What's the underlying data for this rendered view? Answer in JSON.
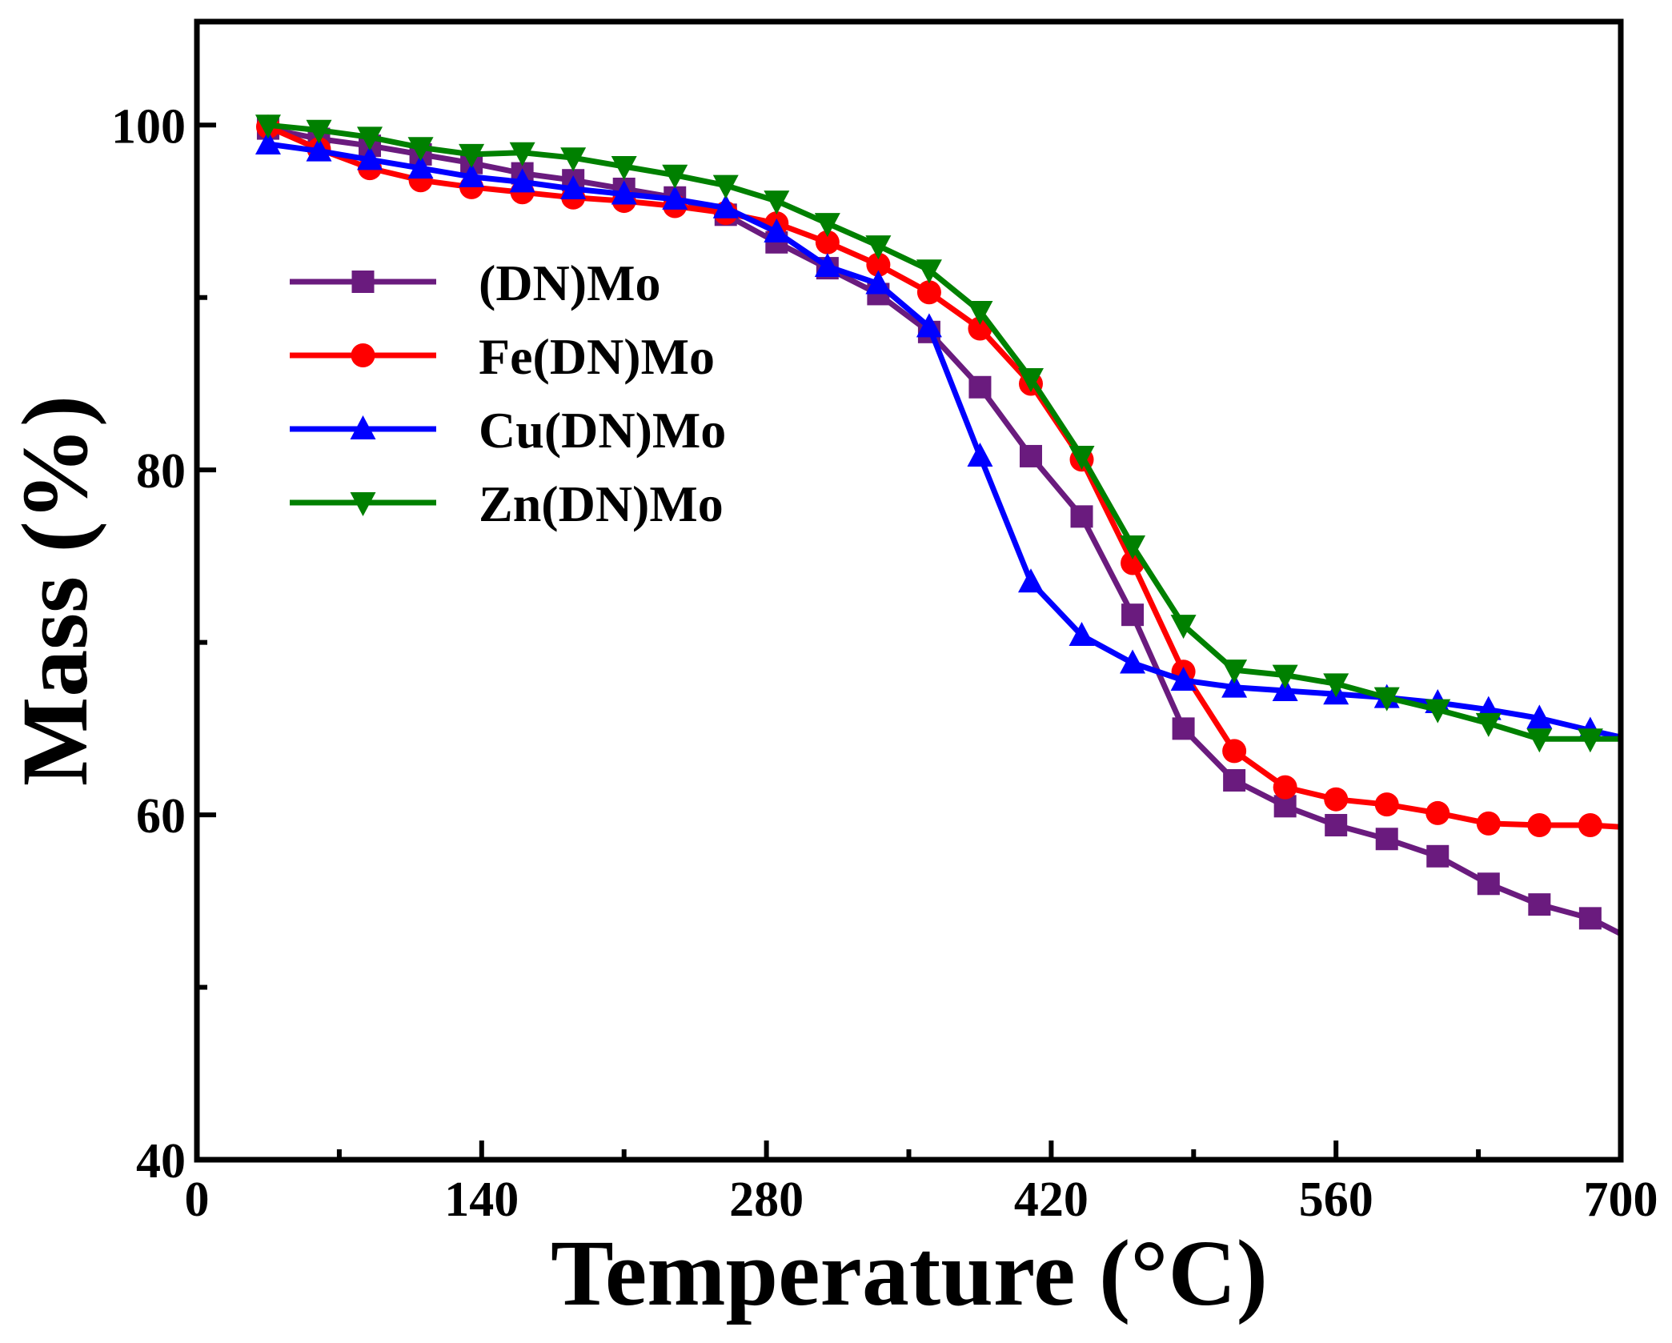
{
  "chart_data": {
    "type": "line",
    "title": "",
    "xlabel": "Temperature (°C)",
    "ylabel": "Mass (%)",
    "xlim": [
      0,
      700
    ],
    "ylim": [
      40,
      106
    ],
    "xticks": [
      0,
      140,
      280,
      420,
      560,
      700
    ],
    "yticks": [
      40,
      60,
      80,
      100
    ],
    "legend_position": "upper-left",
    "series": [
      {
        "name": "(DN)Mo",
        "color": "#6a1b7e",
        "marker": "square",
        "x": [
          35,
          60,
          85,
          110,
          135,
          160,
          185,
          210,
          235,
          260,
          285,
          310,
          335,
          360,
          385,
          410,
          435,
          460,
          485,
          510,
          535,
          560,
          585,
          610,
          635,
          660,
          685,
          700
        ],
        "y": [
          99.8,
          99.2,
          98.8,
          98.3,
          97.8,
          97.2,
          96.8,
          96.3,
          95.8,
          94.8,
          93.2,
          91.7,
          90.2,
          88,
          84.8,
          80.8,
          77.3,
          71.6,
          65,
          62,
          60.5,
          59.4,
          58.6,
          57.6,
          56,
          54.8,
          54,
          53.1
        ]
      },
      {
        "name": "Fe(DN)Mo",
        "color": "#ff0000",
        "marker": "circle",
        "x": [
          35,
          60,
          85,
          110,
          135,
          160,
          185,
          210,
          235,
          260,
          285,
          310,
          335,
          360,
          385,
          410,
          435,
          460,
          485,
          510,
          535,
          560,
          585,
          610,
          635,
          660,
          685,
          700
        ],
        "y": [
          99.9,
          98.6,
          97.5,
          96.8,
          96.4,
          96.1,
          95.8,
          95.6,
          95.3,
          94.9,
          94.3,
          93.2,
          91.9,
          90.3,
          88.2,
          85,
          80.6,
          74.6,
          68.3,
          63.7,
          61.6,
          60.9,
          60.6,
          60.1,
          59.5,
          59.4,
          59.4,
          59.3
        ]
      },
      {
        "name": "Cu(DN)Mo",
        "color": "#0000ff",
        "marker": "triangle-up",
        "x": [
          35,
          60,
          85,
          110,
          135,
          160,
          185,
          210,
          235,
          260,
          285,
          310,
          335,
          360,
          385,
          410,
          435,
          460,
          485,
          510,
          535,
          560,
          585,
          610,
          635,
          660,
          685,
          700
        ],
        "y": [
          98.9,
          98.5,
          98,
          97.5,
          97,
          96.7,
          96.3,
          96,
          95.7,
          95.2,
          93.8,
          91.8,
          90.8,
          88.3,
          80.8,
          73.5,
          70.4,
          68.8,
          67.8,
          67.4,
          67.2,
          67,
          66.8,
          66.5,
          66.1,
          65.6,
          64.9,
          64.5
        ]
      },
      {
        "name": "Zn(DN)Mo",
        "color": "#008000",
        "marker": "triangle-down",
        "x": [
          35,
          60,
          85,
          110,
          135,
          160,
          185,
          210,
          235,
          260,
          285,
          310,
          335,
          360,
          385,
          410,
          435,
          460,
          485,
          510,
          535,
          560,
          585,
          610,
          635,
          660,
          685,
          700
        ],
        "y": [
          100,
          99.7,
          99.3,
          98.7,
          98.3,
          98.4,
          98.1,
          97.6,
          97.1,
          96.5,
          95.6,
          94.3,
          93,
          91.6,
          89.2,
          85.3,
          80.8,
          75.6,
          71,
          68.4,
          68.1,
          67.6,
          66.8,
          66.1,
          65.3,
          64.4,
          64.4,
          64.4
        ]
      }
    ]
  }
}
